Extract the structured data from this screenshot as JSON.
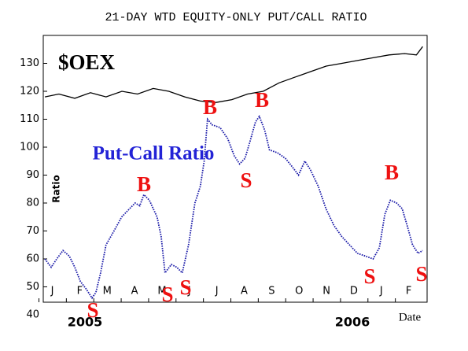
{
  "chart_data": {
    "type": "line",
    "title": "21-DAY WTD EQUITY-ONLY PUT/CALL RATIO",
    "y_label": "Ratio",
    "x_label": "Date",
    "year_labels": [
      "2005",
      "2006"
    ],
    "xlim": [
      -0.33,
      13.67
    ],
    "xticks": [
      {
        "value": 0,
        "label": "J"
      },
      {
        "value": 1,
        "label": "F"
      },
      {
        "value": 2,
        "label": "M"
      },
      {
        "value": 3,
        "label": "A"
      },
      {
        "value": 4,
        "label": "M"
      },
      {
        "value": 5,
        "label": "J"
      },
      {
        "value": 6,
        "label": "J"
      },
      {
        "value": 7,
        "label": "A"
      },
      {
        "value": 8,
        "label": "S"
      },
      {
        "value": 9,
        "label": "O"
      },
      {
        "value": 10,
        "label": "N"
      },
      {
        "value": 11,
        "label": "D"
      },
      {
        "value": 12,
        "label": "J"
      },
      {
        "value": 13,
        "label": "F"
      }
    ],
    "ylim": [
      44.5,
      140
    ],
    "yticks": [
      40,
      50,
      60,
      70,
      80,
      90,
      100,
      110,
      120,
      130
    ],
    "grid": false,
    "series": [
      {
        "name": "$OEX",
        "color": "#000000",
        "style": "solid",
        "x": [
          -0.27,
          0.24,
          0.82,
          1.39,
          1.96,
          2.54,
          3.11,
          3.68,
          4.25,
          4.83,
          5.4,
          5.97,
          6.55,
          7.12,
          7.69,
          8.27,
          8.84,
          9.41,
          9.99,
          10.56,
          11.13,
          11.7,
          12.28,
          12.85,
          13.28,
          13.51
        ],
        "values": [
          118,
          119,
          117.5,
          119.5,
          118,
          120,
          119,
          121,
          120,
          118,
          116.5,
          116,
          117,
          119,
          120,
          123,
          125,
          127,
          129,
          130,
          131,
          132,
          133,
          133.5,
          133,
          136
        ]
      },
      {
        "name": "Put-Call Ratio",
        "color": "#1a1aa8",
        "style": "dotted",
        "x": [
          -0.27,
          -0.04,
          0.16,
          0.39,
          0.62,
          0.82,
          1.02,
          1.25,
          1.45,
          1.59,
          1.76,
          1.96,
          2.25,
          2.53,
          2.82,
          3.02,
          3.19,
          3.34,
          3.54,
          3.82,
          3.97,
          4.11,
          4.34,
          4.54,
          4.74,
          4.97,
          5.2,
          5.4,
          5.54,
          5.66,
          5.83,
          6.12,
          6.4,
          6.63,
          6.83,
          7.03,
          7.21,
          7.41,
          7.55,
          7.75,
          7.92,
          8.21,
          8.5,
          8.75,
          8.98,
          9.21,
          9.41,
          9.7,
          9.98,
          10.27,
          10.56,
          10.84,
          11.13,
          11.42,
          11.7,
          11.93,
          12.13,
          12.33,
          12.56,
          12.76,
          12.94,
          13.14,
          13.34,
          13.51
        ],
        "values": [
          60,
          57,
          60,
          63,
          61,
          57,
          52,
          49,
          46,
          48,
          55,
          65,
          70,
          75,
          78,
          80,
          79,
          83,
          81,
          75,
          68,
          55,
          58,
          57,
          55,
          65,
          80,
          86,
          95,
          110,
          108,
          107,
          103,
          97,
          94,
          96,
          102,
          109,
          111,
          106,
          99,
          98,
          96,
          93,
          90,
          95,
          92,
          86,
          78,
          72,
          68,
          65,
          62,
          61,
          60,
          64,
          76,
          81,
          80,
          78,
          72,
          65,
          62,
          63
        ]
      }
    ],
    "annotations": [
      "$OEX",
      "Put-Call Ratio",
      "B",
      "S",
      "S",
      "S",
      "B",
      "S",
      "B",
      "S",
      "B",
      "S"
    ],
    "annotation_colors": [
      "#000000",
      "#2323d6",
      "#ee1111",
      "#ee1111",
      "#ee1111",
      "#ee1111",
      "#ee1111",
      "#ee1111",
      "#ee1111",
      "#ee1111",
      "#ee1111",
      "#ee1111"
    ]
  }
}
